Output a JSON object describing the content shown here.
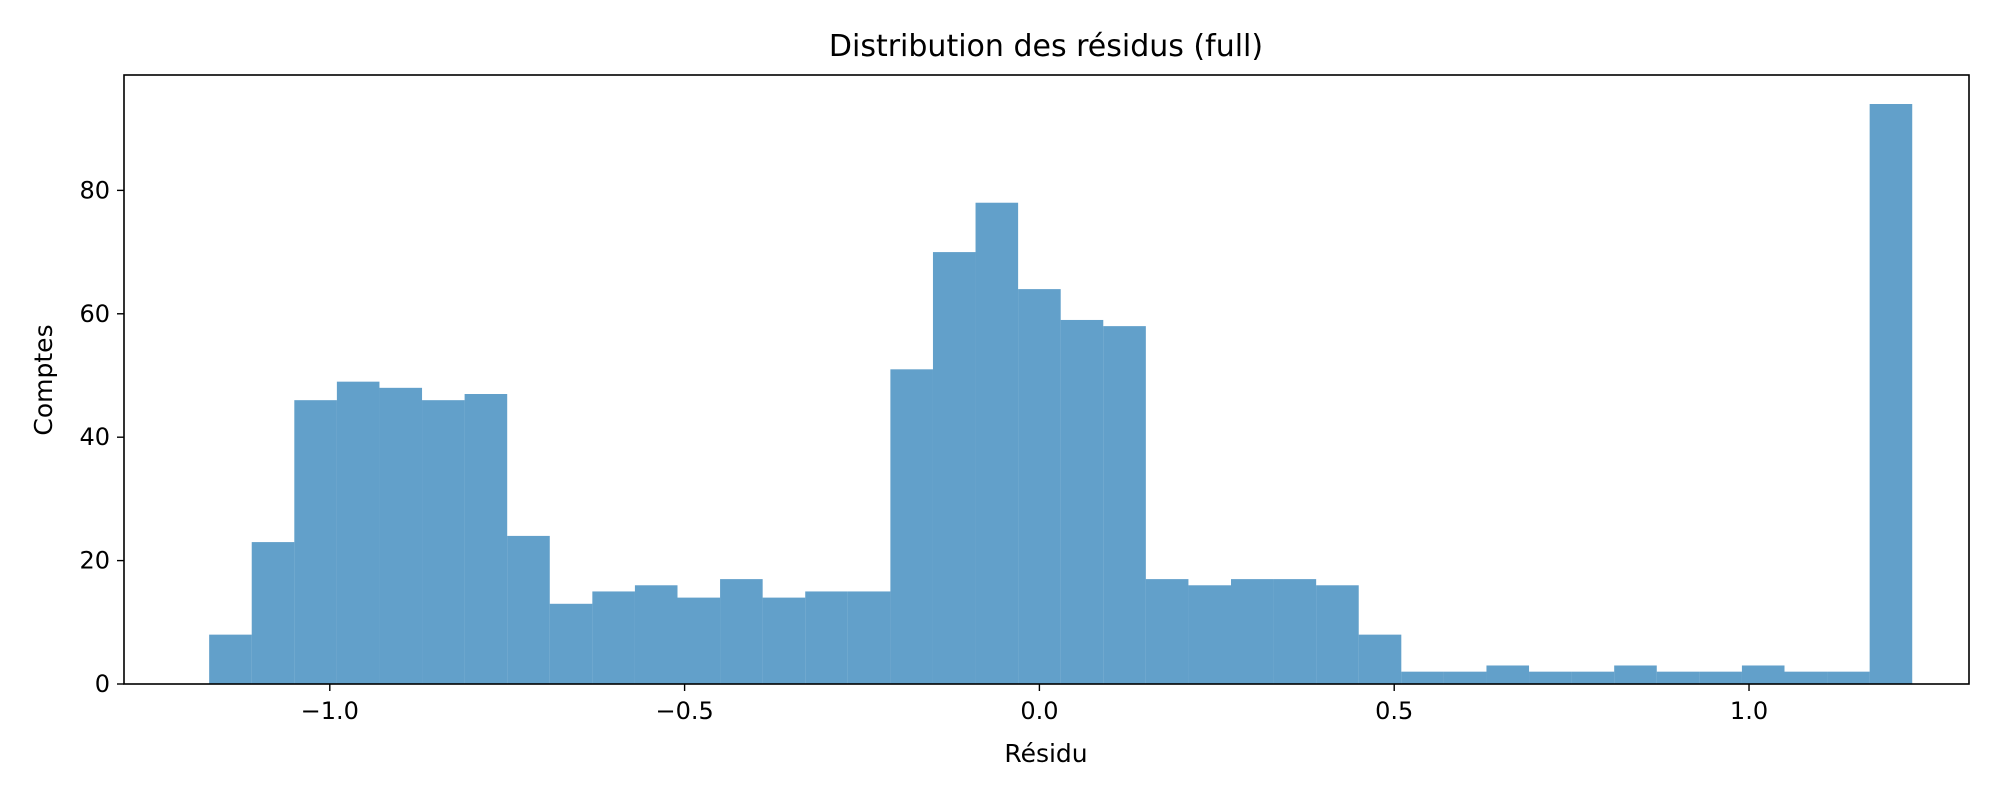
{
  "chart_data": {
    "type": "bar",
    "title": "Distribution des résidus (full)",
    "xlabel": "Résidu",
    "ylabel": "Comptes",
    "xlim": [
      -1.29,
      1.31
    ],
    "ylim": [
      0,
      98.7
    ],
    "x_ticks": [
      {
        "value": -1.0,
        "label": "−1.0"
      },
      {
        "value": -0.5,
        "label": "−0.5"
      },
      {
        "value": 0.0,
        "label": "0.0"
      },
      {
        "value": 0.5,
        "label": "0.5"
      },
      {
        "value": 1.0,
        "label": "1.0"
      }
    ],
    "y_ticks": [
      {
        "value": 0,
        "label": "0"
      },
      {
        "value": 20,
        "label": "20"
      },
      {
        "value": 40,
        "label": "40"
      },
      {
        "value": 60,
        "label": "60"
      },
      {
        "value": 80,
        "label": "80"
      }
    ],
    "bin_edges": [
      -1.17,
      -1.11,
      -1.05,
      -0.99,
      -0.93,
      -0.87,
      -0.81,
      -0.75,
      -0.69,
      -0.63,
      -0.57,
      -0.51,
      -0.45,
      -0.39,
      -0.33,
      -0.27,
      -0.21,
      -0.15,
      -0.09,
      -0.03,
      0.03,
      0.09,
      0.15,
      0.21,
      0.27,
      0.33,
      0.39,
      0.45,
      0.51,
      0.57,
      0.63,
      0.69,
      0.75,
      0.81,
      0.87,
      0.93,
      0.99,
      1.05,
      1.11,
      1.17,
      1.23
    ],
    "values": [
      8,
      23,
      46,
      49,
      48,
      46,
      47,
      24,
      13,
      15,
      16,
      14,
      17,
      14,
      15,
      15,
      51,
      70,
      78,
      64,
      59,
      58,
      17,
      16,
      17,
      17,
      16,
      8,
      2,
      2,
      3,
      2,
      2,
      3,
      2,
      2,
      3,
      2,
      2,
      94
    ],
    "bar_color": "#1f77b4",
    "bar_opacity": 0.7,
    "grid": false,
    "legend": false
  }
}
